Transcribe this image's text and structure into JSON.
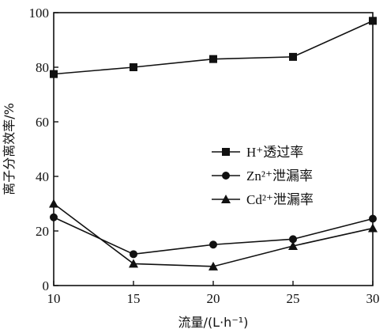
{
  "chart_data": {
    "type": "line",
    "x": [
      10,
      15,
      20,
      25,
      30
    ],
    "xlim": [
      10,
      30
    ],
    "ylim": [
      0,
      100
    ],
    "xticks": [
      "10",
      "15",
      "20",
      "25",
      "30"
    ],
    "yticks": [
      "0",
      "20",
      "40",
      "60",
      "80",
      "100"
    ],
    "xlabel": "流量/(L·h⁻¹)",
    "ylabel": "离子分离效率/%",
    "grid": false,
    "legend_position": "right-center",
    "series": [
      {
        "name": "H⁺透过率",
        "marker": "square",
        "values": [
          77.5,
          80,
          83,
          83.8,
          97
        ]
      },
      {
        "name": "Zn²⁺泄漏率",
        "marker": "circle",
        "values": [
          25,
          11.5,
          15,
          17,
          24.5
        ]
      },
      {
        "name": "Cd²⁺泄漏率",
        "marker": "triangle",
        "values": [
          30,
          8,
          7,
          14.5,
          21
        ]
      }
    ]
  }
}
